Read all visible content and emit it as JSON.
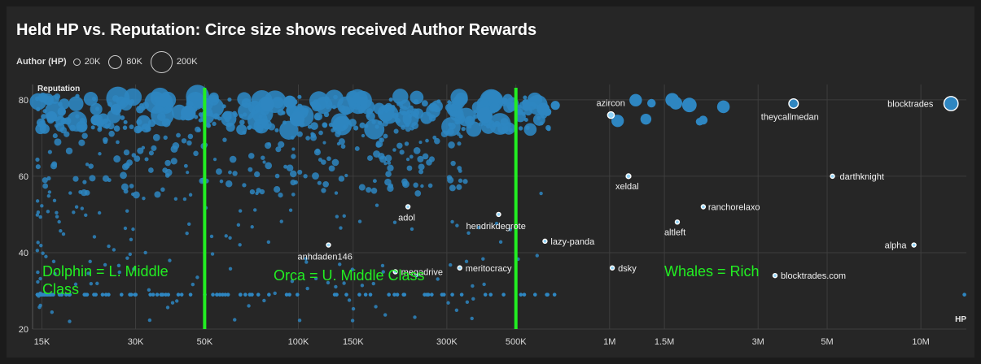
{
  "title": "Held HP vs. Reputation: Circe size shows received Author Rewards",
  "legend": {
    "title": "Author (HP)",
    "items": [
      {
        "label": "20K",
        "value": 20000
      },
      {
        "label": "80K",
        "value": 80000
      },
      {
        "label": "200K",
        "value": 200000
      }
    ]
  },
  "chart_data": {
    "type": "scatter",
    "title": "Held HP vs. Reputation: Circe size shows received Author Rewards",
    "xlabel": "HP",
    "ylabel": "Reputation",
    "x_scale": "log",
    "xlim": [
      14000,
      14000000
    ],
    "ylim": [
      20,
      84
    ],
    "x_ticks": [
      {
        "value": 15000,
        "label": "15K"
      },
      {
        "value": 30000,
        "label": "30K"
      },
      {
        "value": 50000,
        "label": "50K"
      },
      {
        "value": 100000,
        "label": "100K"
      },
      {
        "value": 150000,
        "label": "150K"
      },
      {
        "value": 300000,
        "label": "300K"
      },
      {
        "value": 500000,
        "label": "500K"
      },
      {
        "value": 1000000,
        "label": "1M"
      },
      {
        "value": 1500000,
        "label": "1.5M"
      },
      {
        "value": 3000000,
        "label": "3M"
      },
      {
        "value": 5000000,
        "label": "5M"
      },
      {
        "value": 10000000,
        "label": "10M"
      }
    ],
    "y_ticks": [
      {
        "value": 20,
        "label": "20"
      },
      {
        "value": 40,
        "label": "40"
      },
      {
        "value": 60,
        "label": "60"
      },
      {
        "value": 80,
        "label": "80"
      }
    ],
    "thresholds": [
      50000,
      500000
    ],
    "class_labels": [
      {
        "text": "Dolphin = L. Middle Class",
        "lines": [
          "Dolphin = L. Middle",
          "Class"
        ]
      },
      {
        "text": "Orca = U. Middle Class",
        "lines": [
          "Orca = U. Middle Class"
        ]
      },
      {
        "text": "Whales = Rich",
        "lines": [
          "Whales = Rich"
        ]
      }
    ],
    "labeled_points": [
      {
        "name": "blocktrades",
        "x": 12500000,
        "y": 79,
        "reward": 90000
      },
      {
        "name": "theycallmedan",
        "x": 3900000,
        "y": 79,
        "reward": 40000
      },
      {
        "name": "azircon",
        "x": 1010000,
        "y": 76,
        "reward": 20000
      },
      {
        "name": "xeldal",
        "x": 1150000,
        "y": 60,
        "reward": 10000
      },
      {
        "name": "darthknight",
        "x": 5200000,
        "y": 60,
        "reward": 5000
      },
      {
        "name": "ranchorelaxo",
        "x": 2000000,
        "y": 52,
        "reward": 5000
      },
      {
        "name": "altleft",
        "x": 1650000,
        "y": 48,
        "reward": 5000
      },
      {
        "name": "adol",
        "x": 225000,
        "y": 52,
        "reward": 5000
      },
      {
        "name": "hendrikdegrote",
        "x": 440000,
        "y": 50,
        "reward": 5000
      },
      {
        "name": "lazy-panda",
        "x": 620000,
        "y": 43,
        "reward": 5000
      },
      {
        "name": "anhdaden146",
        "x": 125000,
        "y": 42,
        "reward": 5000
      },
      {
        "name": "megadrive",
        "x": 205000,
        "y": 35,
        "reward": 5000
      },
      {
        "name": "meritocracy",
        "x": 330000,
        "y": 36,
        "reward": 5000
      },
      {
        "name": "dsky",
        "x": 1020000,
        "y": 36,
        "reward": 5000
      },
      {
        "name": "blocktrades.com",
        "x": 3400000,
        "y": 34,
        "reward": 5000
      },
      {
        "name": "alpha",
        "x": 9500000,
        "y": 42,
        "reward": 5000
      }
    ],
    "background_points_note": "Hundreds of unlabeled authors; densely clustered along reputation 70-80 and along reputation 29 for HP below 700K.",
    "colors": {
      "point": "#2e86c1",
      "highlight_fill": "#8fd3f8",
      "highlight_stroke": "#ffffff",
      "threshold": "#22ee22",
      "grid": "#3e3e3e",
      "background": "#262626"
    }
  }
}
